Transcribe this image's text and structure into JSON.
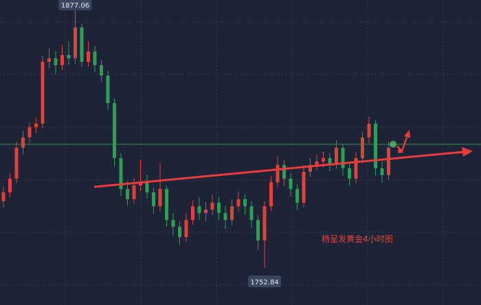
{
  "chart_data": {
    "type": "candlestick",
    "annotation": "杨呈发黄金4小时图",
    "max_label": 1877.06,
    "min_label": 1752.84,
    "ylim": [
      1735,
      1882
    ],
    "up_color": "#e0413a",
    "down_color": "#2e9e55",
    "open": [
      1785.0,
      1789.3,
      1795.9,
      1810.8,
      1815.8,
      1820.7,
      1822.4,
      1852.2,
      1853.9,
      1850.6,
      1855.5,
      1853.9,
      1868.8,
      1852.2,
      1857.2,
      1850.6,
      1845.6,
      1832.3,
      1805.8,
      1790.9,
      1786.0,
      1792.6,
      1794.2,
      1789.3,
      1782.6,
      1790.9,
      1776.0,
      1772.7,
      1767.7,
      1776.0,
      1782.6,
      1779.3,
      1781.0,
      1784.3,
      1779.3,
      1776.0,
      1782.6,
      1786.0,
      1782.6,
      1776.0,
      1766.1,
      1782.6,
      1794.2,
      1802.5,
      1795.9,
      1790.9,
      1784.3,
      1799.2,
      1802.5,
      1804.2,
      1805.8,
      1802.5,
      1810.8,
      1800.9,
      1795.9,
      1805.8,
      1815.8,
      1822.4,
      1800.9,
      1797.6
    ],
    "high": [
      1792.1,
      1798.4,
      1813.5,
      1818.9,
      1823.0,
      1825.3,
      1855.0,
      1858.7,
      1857.3,
      1860.4,
      1862.0,
      1877.06,
      1870.5,
      1862.1,
      1860.0,
      1853.1,
      1847.8,
      1834.5,
      1808.2,
      1794.8,
      1796.3,
      1805.1,
      1797.9,
      1791.6,
      1803.4,
      1792.7,
      1779.4,
      1775.2,
      1779.1,
      1785.3,
      1786.8,
      1784.6,
      1788.2,
      1787.0,
      1782.8,
      1785.9,
      1789.7,
      1788.3,
      1784.9,
      1778.4,
      1785.0,
      1797.1,
      1806.8,
      1804.6,
      1798.7,
      1793.2,
      1802.4,
      1805.9,
      1807.6,
      1808.9,
      1808.1,
      1814.2,
      1812.5,
      1803.8,
      1808.7,
      1818.6,
      1825.7,
      1824.1,
      1804.2,
      1813.9
    ],
    "low": [
      1782.0,
      1787.1,
      1793.8,
      1807.6,
      1813.2,
      1817.9,
      1820.1,
      1848.8,
      1846.2,
      1848.1,
      1850.7,
      1851.2,
      1849.6,
      1849.9,
      1847.3,
      1842.4,
      1829.0,
      1801.7,
      1787.5,
      1782.9,
      1783.8,
      1789.7,
      1786.4,
      1779.0,
      1780.2,
      1772.8,
      1768.3,
      1763.9,
      1765.4,
      1773.7,
      1776.1,
      1775.5,
      1778.4,
      1775.9,
      1771.6,
      1773.4,
      1780.1,
      1778.8,
      1772.2,
      1761.5,
      1752.84,
      1780.3,
      1791.7,
      1792.5,
      1787.3,
      1780.6,
      1782.1,
      1796.8,
      1799.9,
      1801.3,
      1799.4,
      1800.6,
      1797.3,
      1792.4,
      1793.6,
      1803.2,
      1812.9,
      1797.5,
      1794.0,
      1795.3
    ],
    "close": [
      1789.3,
      1795.9,
      1810.8,
      1815.8,
      1820.7,
      1822.4,
      1852.2,
      1853.9,
      1850.6,
      1855.5,
      1853.9,
      1868.8,
      1852.2,
      1857.2,
      1850.6,
      1845.6,
      1832.3,
      1805.8,
      1790.9,
      1786.0,
      1792.6,
      1794.2,
      1789.3,
      1782.6,
      1790.9,
      1776.0,
      1772.7,
      1767.7,
      1776.0,
      1782.6,
      1779.3,
      1781.0,
      1784.3,
      1779.3,
      1776.0,
      1782.6,
      1786.0,
      1782.6,
      1776.0,
      1766.1,
      1782.6,
      1794.2,
      1802.5,
      1795.9,
      1790.9,
      1784.3,
      1799.2,
      1802.5,
      1804.2,
      1805.8,
      1802.5,
      1810.8,
      1800.9,
      1795.9,
      1805.8,
      1815.8,
      1822.4,
      1800.9,
      1797.6,
      1810.8
    ]
  }
}
